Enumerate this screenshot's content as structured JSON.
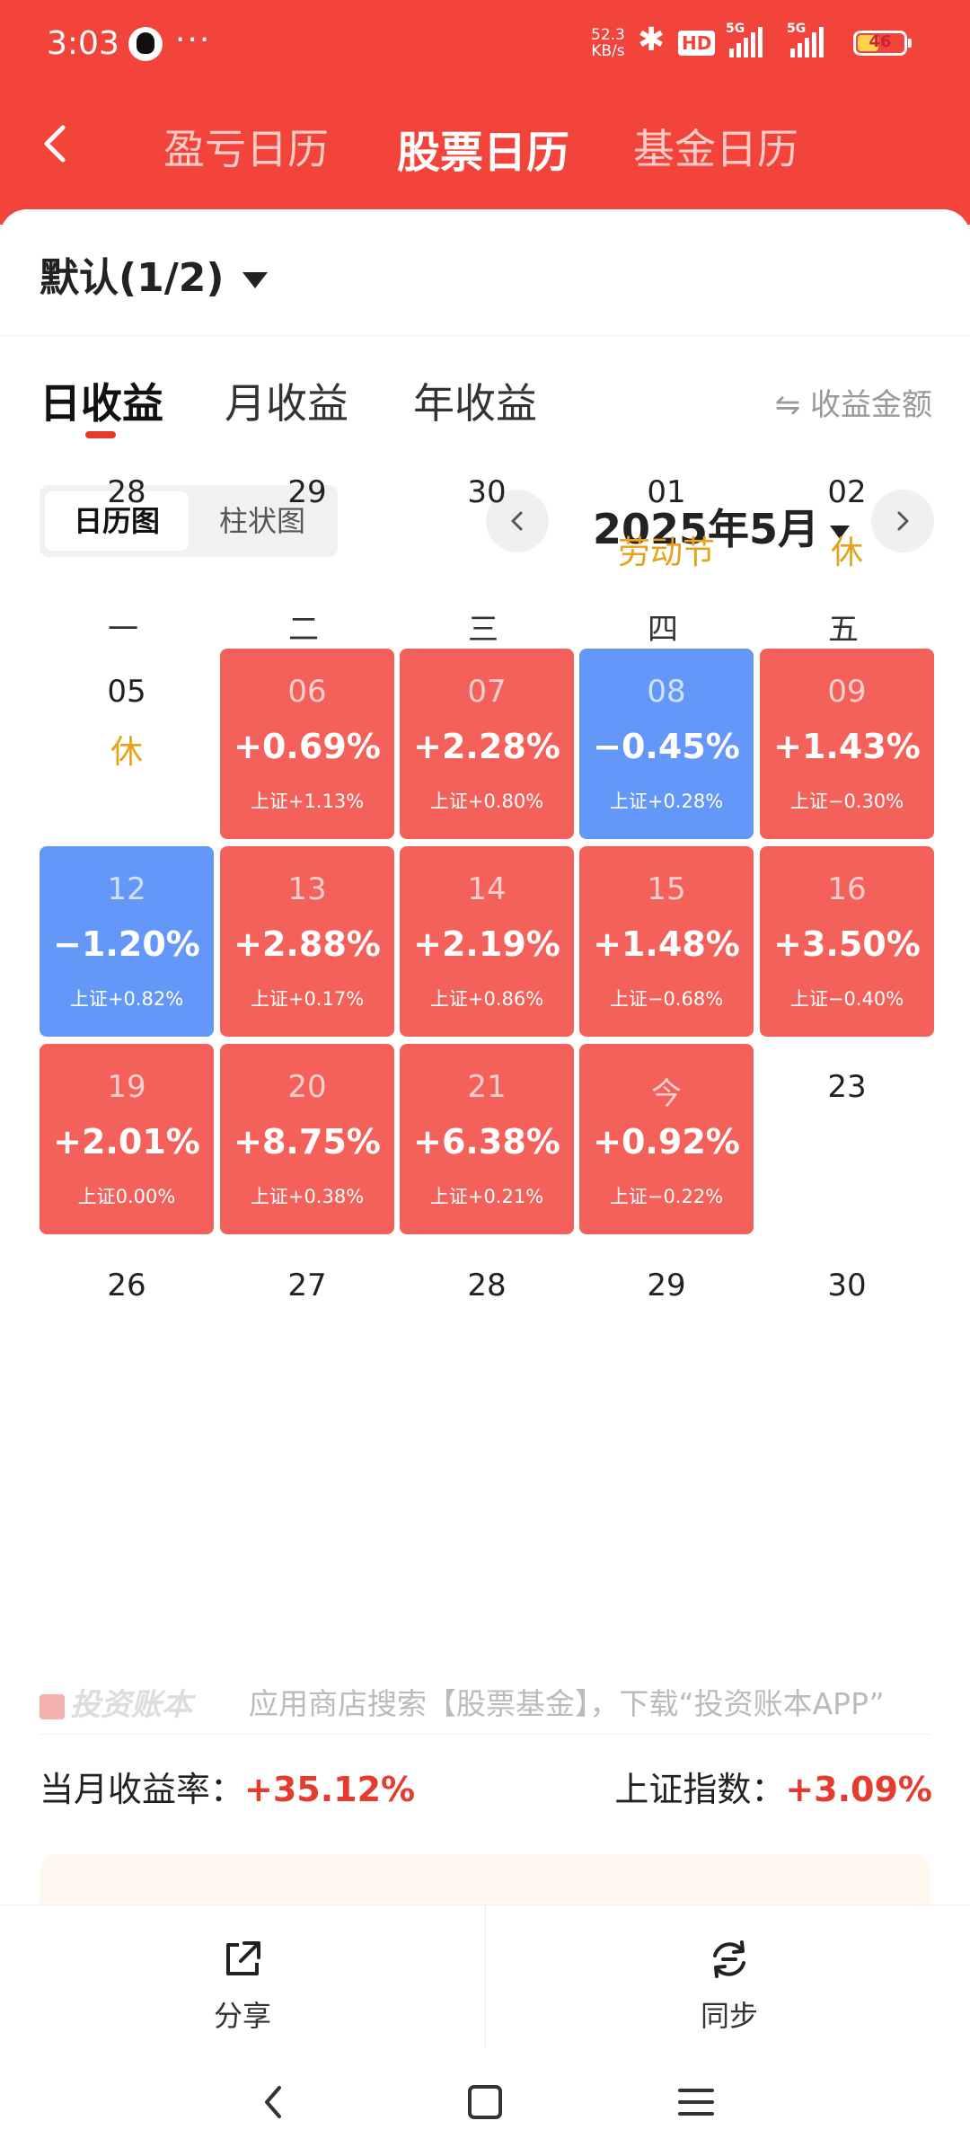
{
  "status": {
    "time": "3:03",
    "dots": "···",
    "speed_value": "52.3",
    "speed_unit": "KB/s",
    "hd_label": "HD",
    "signal1_label": "5G",
    "signal2_label": "5G",
    "battery_level": "46"
  },
  "nav": {
    "tabs": [
      "盈亏日历",
      "股票日历",
      "基金日历"
    ],
    "active_tab": 1
  },
  "account": {
    "label": "默认(1/2)"
  },
  "period_tabs": {
    "items": [
      "日收益",
      "月收益",
      "年收益"
    ],
    "active": 0
  },
  "toggle_amount": "⇋ 收益金额",
  "view_switch": {
    "items": [
      "日历图",
      "柱状图"
    ],
    "active": 0
  },
  "month": {
    "label": "2025年5月"
  },
  "weekdays": [
    "一",
    "二",
    "三",
    "四",
    "五"
  ],
  "calendar": [
    [
      {
        "day": "28"
      },
      {
        "day": "29"
      },
      {
        "day": "30"
      },
      {
        "day": "01",
        "holiday": "劳动节"
      },
      {
        "day": "02",
        "holiday": "休"
      }
    ],
    [
      {
        "day": "05",
        "holiday": "休"
      },
      {
        "day": "06",
        "pct": "+0.69%",
        "idx": "上证+1.13%",
        "trend": "up"
      },
      {
        "day": "07",
        "pct": "+2.28%",
        "idx": "上证+0.80%",
        "trend": "up"
      },
      {
        "day": "08",
        "pct": "−0.45%",
        "idx": "上证+0.28%",
        "trend": "down"
      },
      {
        "day": "09",
        "pct": "+1.43%",
        "idx": "上证−0.30%",
        "trend": "up"
      }
    ],
    [
      {
        "day": "12",
        "pct": "−1.20%",
        "idx": "上证+0.82%",
        "trend": "down"
      },
      {
        "day": "13",
        "pct": "+2.88%",
        "idx": "上证+0.17%",
        "trend": "up"
      },
      {
        "day": "14",
        "pct": "+2.19%",
        "idx": "上证+0.86%",
        "trend": "up"
      },
      {
        "day": "15",
        "pct": "+1.48%",
        "idx": "上证−0.68%",
        "trend": "up"
      },
      {
        "day": "16",
        "pct": "+3.50%",
        "idx": "上证−0.40%",
        "trend": "up"
      }
    ],
    [
      {
        "day": "19",
        "pct": "+2.01%",
        "idx": "上证0.00%",
        "trend": "up"
      },
      {
        "day": "20",
        "pct": "+8.75%",
        "idx": "上证+0.38%",
        "trend": "up"
      },
      {
        "day": "21",
        "pct": "+6.38%",
        "idx": "上证+0.21%",
        "trend": "up"
      },
      {
        "day": "今",
        "pct": "+0.92%",
        "idx": "上证−0.22%",
        "trend": "up"
      },
      {
        "day": "23"
      }
    ],
    [
      {
        "day": "26"
      },
      {
        "day": "27"
      },
      {
        "day": "28"
      },
      {
        "day": "29"
      },
      {
        "day": "30"
      }
    ]
  ],
  "watermark": {
    "brand": "投资账本",
    "text": "应用商店搜索【股票基金】，下载“投资账本APP”"
  },
  "summary": {
    "month_label": "当月收益率：",
    "month_value": "+35.12%",
    "index_label": "上证指数：",
    "index_value": "+3.09%"
  },
  "bottom": {
    "share": "分享",
    "sync": "同步"
  },
  "colors": {
    "header": "#f2443a",
    "up": "#f4605a",
    "down": "#6498f8",
    "holiday": "#e6a21a",
    "accent": "#e63c30"
  }
}
